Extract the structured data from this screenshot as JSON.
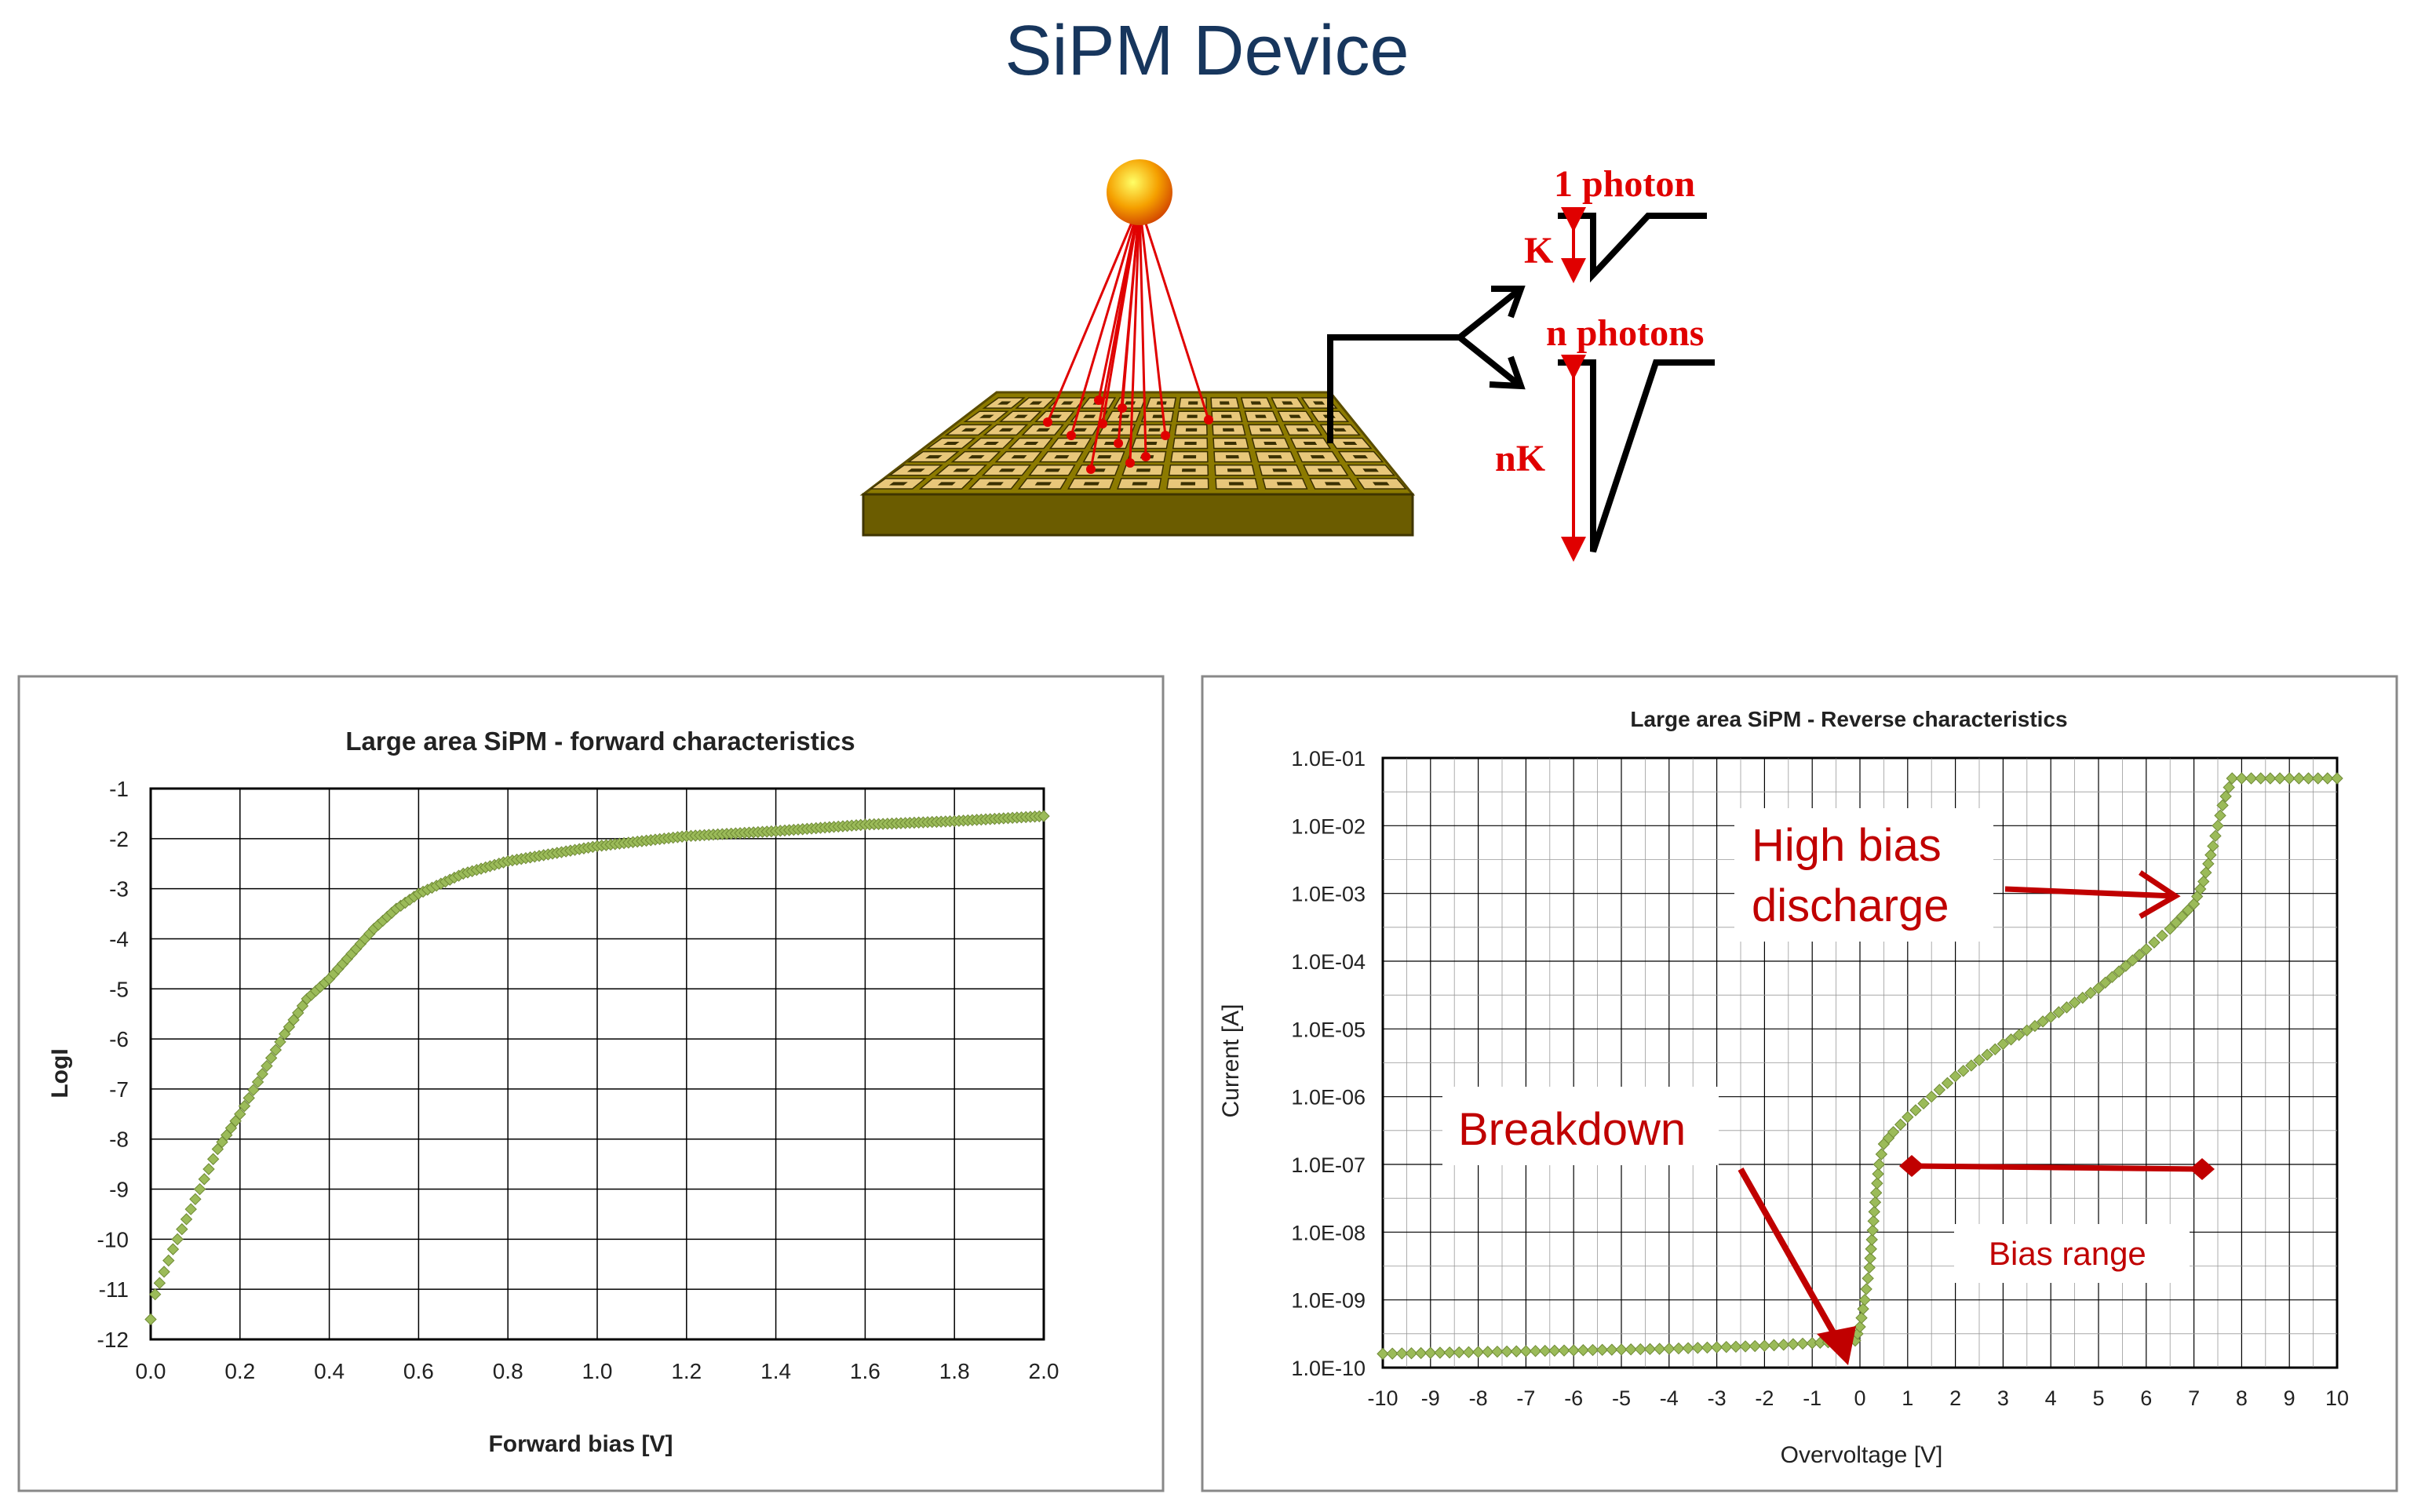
{
  "title": "SiPM Device",
  "diagram": {
    "label_1_photon": "1 photon",
    "label_k": "K",
    "label_n_photons": "n photons",
    "label_nk": "nK"
  },
  "chart_data": [
    {
      "type": "scatter",
      "title": "Large area SiPM - forward characteristics",
      "xlabel": "Forward bias [V]",
      "ylabel": "LogI",
      "xlim": [
        0,
        2.0
      ],
      "ylim": [
        -12,
        -1
      ],
      "xticks": [
        "0.0",
        "0.2",
        "0.4",
        "0.6",
        "0.8",
        "1.0",
        "1.2",
        "1.4",
        "1.6",
        "1.8",
        "2.0"
      ],
      "yticks": [
        "-1",
        "-2",
        "-3",
        "-4",
        "-5",
        "-6",
        "-7",
        "-8",
        "-9",
        "-10",
        "-11",
        "-12"
      ],
      "grid": true,
      "series": [
        {
          "color": "#9bbb59",
          "points": [
            [
              0.0,
              -11.6
            ],
            [
              0.01,
              -11.1
            ],
            [
              0.05,
              -10.2
            ],
            [
              0.1,
              -9.2
            ],
            [
              0.15,
              -8.2
            ],
            [
              0.2,
              -7.5
            ],
            [
              0.25,
              -6.7
            ],
            [
              0.3,
              -5.9
            ],
            [
              0.35,
              -5.2
            ],
            [
              0.4,
              -4.8
            ],
            [
              0.45,
              -4.3
            ],
            [
              0.5,
              -3.8
            ],
            [
              0.55,
              -3.4
            ],
            [
              0.6,
              -3.1
            ],
            [
              0.65,
              -2.9
            ],
            [
              0.7,
              -2.7
            ],
            [
              0.8,
              -2.45
            ],
            [
              0.9,
              -2.3
            ],
            [
              1.0,
              -2.15
            ],
            [
              1.2,
              -1.95
            ],
            [
              1.4,
              -1.85
            ],
            [
              1.6,
              -1.72
            ],
            [
              1.8,
              -1.65
            ],
            [
              2.0,
              -1.55
            ]
          ]
        }
      ]
    },
    {
      "type": "scatter",
      "title": "Large area SiPM - Reverse characteristics",
      "xlabel": "Overvoltage [V]",
      "ylabel": "Current [A]",
      "xlim": [
        -10,
        10
      ],
      "ylim": [
        1e-10,
        0.1
      ],
      "yscale": "log",
      "xticks": [
        "-10",
        "-9",
        "-8",
        "-7",
        "-6",
        "-5",
        "-4",
        "-3",
        "-2",
        "-1",
        "0",
        "1",
        "2",
        "3",
        "4",
        "5",
        "6",
        "7",
        "8",
        "9",
        "10"
      ],
      "yticks": [
        "1.0E-01",
        "1.0E-02",
        "1.0E-03",
        "1.0E-04",
        "1.0E-05",
        "1.0E-06",
        "1.0E-07",
        "1.0E-08",
        "1.0E-09",
        "1.0E-10"
      ],
      "grid": true,
      "series": [
        {
          "color": "#9bbb59",
          "points": [
            [
              -10,
              1.6e-10
            ],
            [
              -8,
              1.7e-10
            ],
            [
              -6,
              1.8e-10
            ],
            [
              -4,
              1.9e-10
            ],
            [
              -2,
              2.1e-10
            ],
            [
              -1,
              2.3e-10
            ],
            [
              -0.5,
              2.4e-10
            ],
            [
              -0.1,
              2.5e-10
            ],
            [
              0,
              4e-10
            ],
            [
              0.1,
              1e-09
            ],
            [
              0.2,
              3e-09
            ],
            [
              0.3,
              2e-08
            ],
            [
              0.4,
              1e-07
            ],
            [
              0.5,
              2e-07
            ],
            [
              0.7,
              3e-07
            ],
            [
              1,
              5e-07
            ],
            [
              1.5,
              1e-06
            ],
            [
              2,
              2e-06
            ],
            [
              3,
              6e-06
            ],
            [
              4,
              1.5e-05
            ],
            [
              5,
              4e-05
            ],
            [
              6,
              0.00015
            ],
            [
              6.5,
              0.0003
            ],
            [
              7,
              0.0007
            ],
            [
              7.2,
              0.0015
            ],
            [
              7.4,
              0.005
            ],
            [
              7.6,
              0.02
            ],
            [
              7.8,
              0.05
            ],
            [
              8,
              0.05
            ],
            [
              9,
              0.05
            ],
            [
              10,
              0.05
            ]
          ]
        }
      ],
      "annotations": {
        "high_bias": [
          "High bias",
          "discharge"
        ],
        "breakdown": "Breakdown",
        "bias_range": "Bias range"
      }
    }
  ]
}
